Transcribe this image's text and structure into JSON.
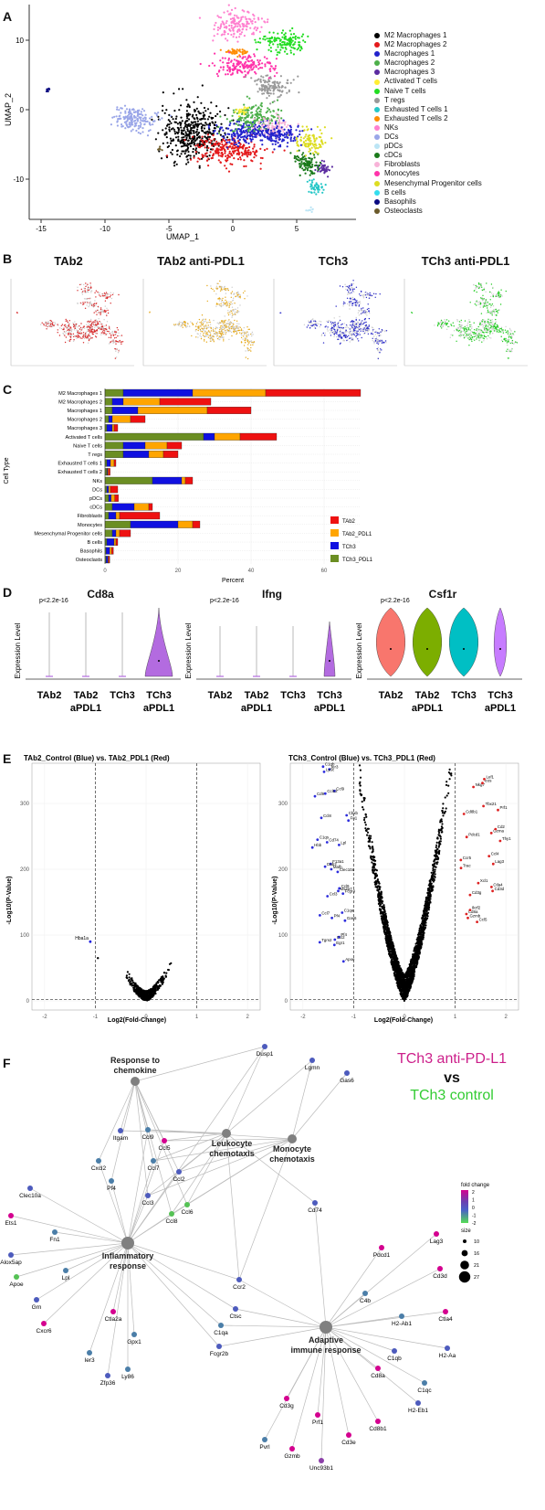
{
  "panels": {
    "A": "A",
    "B": "B",
    "C": "C",
    "D": "D",
    "E": "E",
    "F": "F"
  },
  "panelA": {
    "xlabel": "UMAP_1",
    "ylabel": "UMAP_2",
    "xticks": [
      "-15",
      "-10",
      "-5",
      "0",
      "5"
    ],
    "yticks": [
      "10",
      "0",
      "-10"
    ],
    "legend": [
      {
        "name": "M2 Macrophages 1",
        "color": "#000000"
      },
      {
        "name": "M2 Macrophages 2",
        "color": "#e41a1c"
      },
      {
        "name": "Macrophages 1",
        "color": "#2222cc"
      },
      {
        "name": "Macrophages 2",
        "color": "#4daf4a"
      },
      {
        "name": "Macrophages 3",
        "color": "#5b2ca0"
      },
      {
        "name": "Activated T cells",
        "color": "#ffee33"
      },
      {
        "name": "Naive T cells",
        "color": "#22dd22"
      },
      {
        "name": "T regs",
        "color": "#999999"
      },
      {
        "name": "Exhausted T cells 1",
        "color": "#25c7c7"
      },
      {
        "name": "Exhausted T cells 2",
        "color": "#ff8c00"
      },
      {
        "name": "NKs",
        "color": "#ff7fcf"
      },
      {
        "name": "DCs",
        "color": "#9aa6e8"
      },
      {
        "name": "pDCs",
        "color": "#bbe5f5"
      },
      {
        "name": "cDCs",
        "color": "#1b7a1b"
      },
      {
        "name": "Fibroblasts",
        "color": "#f8b3d8"
      },
      {
        "name": "Monocytes",
        "color": "#ff33aa"
      },
      {
        "name": "Mesenchymal Progenitor cells",
        "color": "#dddd22"
      },
      {
        "name": "B cells",
        "color": "#33ddee"
      },
      {
        "name": "Basophils",
        "color": "#0a0a80"
      },
      {
        "name": "Osteoclasts",
        "color": "#6b5a2a"
      }
    ]
  },
  "panelB": {
    "titles": [
      "TAb2",
      "TAb2 anti-PDL1",
      "TCh3",
      "TCh3 anti-PDL1"
    ],
    "colors": [
      "#d62728",
      "#e6a91a",
      "#2a2ac8",
      "#22cc22"
    ]
  },
  "panelC": {
    "ylabel": "Cell Type",
    "xlabel": "Percent",
    "legend": [
      {
        "name": "TAb2",
        "color": "#ee1111"
      },
      {
        "name": "TAb2_PDL1",
        "color": "#ffa500"
      },
      {
        "name": "TCh3",
        "color": "#1010e0"
      },
      {
        "name": "TCh3_PDL1",
        "color": "#6b8e23"
      }
    ]
  },
  "chart_data": [
    {
      "type": "bar",
      "title": "",
      "xlabel": "Percent",
      "ylabel": "Cell Type",
      "xticks": [
        "0",
        "20",
        "40",
        "60"
      ],
      "xlim": [
        0,
        70
      ],
      "categories": [
        "M2 Macrophages 1",
        "M2 Macrophages 2",
        "Macrophages 1",
        "Macrophages 2",
        "Macrophages 3",
        "Activated T cells",
        "Naive T cells",
        "T regs",
        "Exhausted T cells 1",
        "Exhausted T cells 2",
        "NKs",
        "DCs",
        "pDCs",
        "cDCs",
        "Fibroblasts",
        "Monocytes",
        "Mesenchymal Progenitor cells",
        "B cells",
        "Basophils",
        "Osteoclasts"
      ],
      "series": [
        {
          "name": "TCh3_PDL1",
          "values": [
            5,
            2,
            2,
            1,
            0.5,
            27,
            5,
            5,
            0.5,
            0.5,
            13,
            0.5,
            1,
            2,
            1,
            7,
            2,
            0.5,
            0.3,
            0.3
          ]
        },
        {
          "name": "TCh3",
          "values": [
            19,
            3,
            7,
            1,
            1.5,
            3,
            6,
            7,
            1,
            0.2,
            8,
            0.5,
            0.7,
            6,
            2,
            13,
            1,
            2,
            1,
            0.5
          ]
        },
        {
          "name": "TAb2_PDL1",
          "values": [
            20,
            10,
            19,
            5,
            0.5,
            7,
            6,
            4,
            1,
            0.2,
            1,
            0.5,
            1,
            4,
            1,
            4,
            1,
            0.5,
            0.5,
            0.2
          ]
        },
        {
          "name": "TAb2",
          "values": [
            26,
            14,
            12,
            4,
            1,
            10,
            4,
            4,
            0.5,
            0.5,
            2,
            2,
            1,
            1,
            11,
            2,
            3,
            0.5,
            0.5,
            0.3
          ]
        }
      ]
    }
  ],
  "panelD": {
    "pvalue": "p<2.2e-16",
    "ylabel": "Expression Level",
    "genes": [
      "Cd8a",
      "Ifng",
      "Csf1r"
    ],
    "groups": [
      "TAb2",
      "TAb2\naPDL1",
      "TCh3",
      "TCh3\naPDL1"
    ],
    "groupsLine1": [
      "TAb2",
      "TAb2",
      "TCh3",
      "TCh3"
    ],
    "groupsLine2": [
      "",
      "aPDL1",
      "",
      "aPDL1"
    ]
  },
  "panelE": {
    "left_title": "TAb2_Control (Blue) vs. TAb2_PDL1 (Red)",
    "right_title": "TCh3_Control (Blue) vs. TCh3_PDL1 (Red)",
    "xlabel": "Log2(Fold-Change)",
    "ylabel": "-Log10(P-Value)",
    "xticks": [
      "-2",
      "-1",
      "0",
      "1",
      "2"
    ],
    "yticks": [
      "0",
      "100",
      "200",
      "300"
    ],
    "left_genes": [
      "Hba1a"
    ],
    "right_genes_blue": [
      "Apoe",
      "Pf4",
      "C1qa",
      "Ccl9",
      "F13a1",
      "C1qs",
      "Cbxb",
      "Ccl9",
      "C1qb",
      "Ccl2",
      "Ccl7",
      "Ms4a7",
      "Dab2",
      "Cd74",
      "Ccl8",
      "Ccl12",
      "Ier3",
      "Tgm2",
      "Pf4",
      "Fcgr3",
      "Mafb",
      "Lpl",
      "Fn1",
      "Cd9",
      "Ly6c",
      "Egr1",
      "Gas6",
      "Ccl3",
      "Clec10a",
      "Hbb"
    ],
    "right_genes_red": [
      "Ccl5",
      "Cd3g",
      "Trac",
      "Thy1",
      "Cd8b1",
      "Nkg7",
      "Gzmb",
      "Cd3d",
      "Lag3",
      "Pdcd1",
      "Prf1",
      "Icos",
      "Cd8a",
      "Ctla4",
      "Ccr5",
      "Gzma",
      "Tbx21",
      "Lef1",
      "Ikzf2",
      "Xcl1",
      "Ccl4",
      "Cd2"
    ]
  },
  "panelF": {
    "title_line1": "TCh3 anti-PD-L1",
    "title_vs": "vs",
    "title_line2": "TCh3 control",
    "color_line1": "#cc1f8a",
    "color_line2": "#33cc33",
    "hubs": [
      {
        "label": "Response to\nchemokine",
        "l1": "Response to",
        "l2": "chemokine"
      },
      {
        "label": "Leukocyte\nchemotaxis",
        "l1": "Leukocyte",
        "l2": "chemotaxis"
      },
      {
        "label": "Monocyte\nchemotaxis",
        "l1": "Monocyte",
        "l2": "chemotaxis"
      },
      {
        "label": "Inflammatory\nresponse",
        "l1": "Inflammatory",
        "l2": "response"
      },
      {
        "label": "Adaptive\nimmune response",
        "l1": "Adaptive",
        "l2": "immune response"
      }
    ],
    "genes": [
      "Dusp1",
      "Lgmn",
      "Gas6",
      "Itgam",
      "Ccl9",
      "Ccl5",
      "Cxcl2",
      "Ccl7",
      "Ccl2",
      "Pf4",
      "Ccl3",
      "Ccl8",
      "Ccl6",
      "Clec10a",
      "Ets1",
      "Fn1",
      "Alox5ap",
      "Apoe",
      "Lpl",
      "Grn",
      "Cxcr6",
      "Cd74",
      "Ccr2",
      "Ctsc",
      "C1qa",
      "Fcgr2b",
      "Ctla2a",
      "Gpx1",
      "Ier3",
      "Zfp36",
      "Ly86",
      "Pdcd1",
      "Lag3",
      "C4b",
      "Cd3d",
      "H2-Ab1",
      "Ctla4",
      "C1qb",
      "H2-Aa",
      "C1qc",
      "Cd8a",
      "H2-Eb1",
      "Cd8b1",
      "Cd3e",
      "Prf1",
      "Cd3g",
      "Pvrl",
      "Gzmb",
      "Unc93b1"
    ],
    "legend_fc_title": "fold change",
    "legend_fc_ticks": [
      "2",
      "1",
      "0",
      "-1",
      "-2"
    ],
    "legend_size_title": "size",
    "legend_size_vals": [
      "10",
      "16",
      "21",
      "27"
    ]
  }
}
